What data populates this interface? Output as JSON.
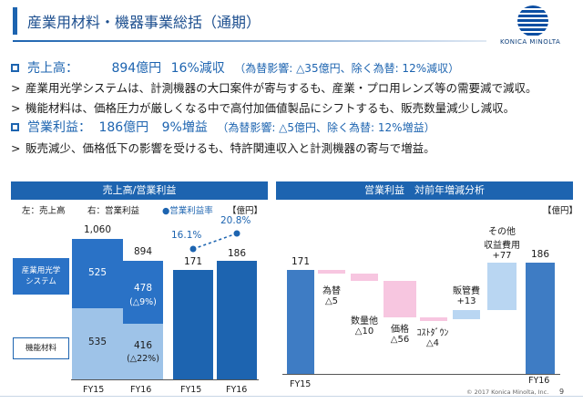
{
  "header": {
    "title": "産業用材料・機器事業総括（通期）",
    "logo_text": "KONICA MINOLTA"
  },
  "summary": {
    "sales_label": "売上高：",
    "sales_value": "894億円",
    "sales_change": "16%減収",
    "sales_note": "（為替影響: △35億円、除く為替: 12%減収）",
    "bullet1": "産業用光学システムは、計測機器の大口案件が寄与するも、産業・プロ用レンズ等の需要減で減収。",
    "bullet2": "機能材料は、価格圧力が厳しくなる中で高付加価値製品にシフトするも、販売数量減少し減収。",
    "op_label": "営業利益：",
    "op_value": "186億円",
    "op_change": "9%増益",
    "op_note": "（為替影響: △5億円、除く為替: 12%増益）",
    "bullet3": "販売減少、価格低下の影響を受けるも、特許関連収入と計測機器の寄与で増益。"
  },
  "left_panel": {
    "heading": "売上高/営業利益",
    "caption_left": "左：売上高",
    "caption_right": "右：営業利益",
    "caption_rate": "●営業利益率",
    "unit": "【億円】",
    "legend_optical": "産業用光学\nシステム",
    "legend_materials": "機能材料"
  },
  "right_panel": {
    "heading": "営業利益　対前年増減分析",
    "unit": "【億円】",
    "labels": {
      "start": "171",
      "fx": "為替\n△5",
      "volume": "数量他\n△10",
      "price": "価格\n△56",
      "cost": "ｺｽﾄﾀﾞｳﾝ\n△4",
      "sga": "販管費\n+13",
      "other": "その他\n収益費用\n+77",
      "end": "186",
      "x_start": "FY15",
      "x_end": "FY16"
    }
  },
  "chart_data": [
    {
      "type": "bar",
      "title": "売上高/営業利益",
      "categories": [
        "FY15",
        "FY16"
      ],
      "series": [
        {
          "name": "産業用光学システム",
          "values": [
            525,
            478
          ],
          "labels": [
            "525",
            "478"
          ],
          "change_labels": [
            "",
            "(△9%)"
          ]
        },
        {
          "name": "機能材料",
          "values": [
            535,
            416
          ],
          "labels": [
            "535",
            "416"
          ],
          "change_labels": [
            "",
            "(△22%)"
          ]
        }
      ],
      "totals": [
        1060,
        894
      ],
      "total_labels": [
        "1,060",
        "894"
      ]
    },
    {
      "type": "bar",
      "categories": [
        "FY15",
        "FY16"
      ],
      "series": [
        {
          "name": "営業利益",
          "values": [
            171,
            186
          ],
          "labels": [
            "171",
            "186"
          ]
        }
      ],
      "rate": {
        "name": "営業利益率",
        "values": [
          16.1,
          20.8
        ],
        "labels": [
          "16.1%",
          "20.8%"
        ]
      }
    },
    {
      "type": "bar",
      "title": "営業利益　対前年増減分析",
      "categories": [
        "FY15",
        "為替",
        "数量他",
        "価格",
        "ｺｽﾄﾀﾞｳﾝ",
        "販管費",
        "その他収益費用",
        "FY16"
      ],
      "values": [
        171,
        -5,
        -10,
        -56,
        -4,
        13,
        77,
        186
      ]
    }
  ],
  "footer": {
    "copyright": "© 2017 Konica Minolta, Inc.",
    "page": "9"
  },
  "colors": {
    "primary": "#1d64b0",
    "optical": "#2a72c6",
    "materials": "#9ec3e8",
    "decrease": "#f7c6e0",
    "increase": "#b9d6f2",
    "rate": "#1d64b0"
  }
}
